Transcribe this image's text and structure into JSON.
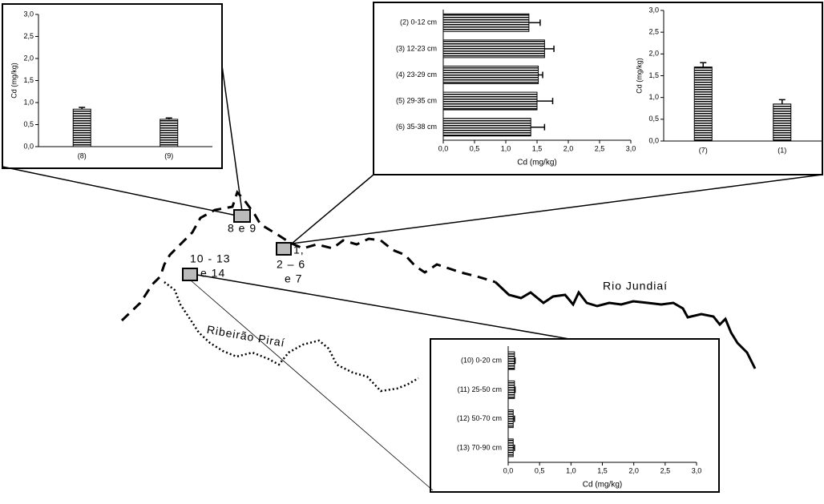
{
  "chart_data": [
    {
      "type": "bar",
      "orientation": "vertical",
      "categories": [
        "(8)",
        "(9)"
      ],
      "values": [
        0.85,
        0.62
      ],
      "errors": [
        0.04,
        0.03
      ],
      "y_label": "Cd (mg/kg)",
      "ylim": [
        0,
        3
      ],
      "yticks": [
        {
          "value": 0,
          "label": "0,0"
        },
        {
          "value": 0.5,
          "label": "0,5"
        },
        {
          "value": 1,
          "label": "1,0"
        },
        {
          "value": 1.5,
          "label": "1,5"
        },
        {
          "value": 2,
          "label": "2,0"
        },
        {
          "value": 2.5,
          "label": "2,5"
        },
        {
          "value": 3,
          "label": "3,0"
        }
      ],
      "color": "#000000"
    },
    {
      "type": "bar",
      "orientation": "horizontal",
      "categories": [
        "(2) 0-12 cm",
        "(3) 12-23 cm",
        "(4) 23-29 cm",
        "(5) 29-35 cm",
        "(6) 35-38 cm"
      ],
      "values": [
        1.37,
        1.62,
        1.52,
        1.5,
        1.4
      ],
      "errors": [
        0.18,
        0.15,
        0.07,
        0.25,
        0.22
      ],
      "x_label": "Cd (mg/kg)",
      "xlim": [
        0,
        3
      ],
      "xticks": [
        {
          "value": 0,
          "label": "0,0"
        },
        {
          "value": 0.5,
          "label": "0,5"
        },
        {
          "value": 1,
          "label": "1,0"
        },
        {
          "value": 1.5,
          "label": "1,5"
        },
        {
          "value": 2,
          "label": "2,0"
        },
        {
          "value": 2.5,
          "label": "2,5"
        },
        {
          "value": 3,
          "label": "3,0"
        }
      ],
      "color": "#000000"
    },
    {
      "type": "bar",
      "orientation": "vertical",
      "categories": [
        "(7)",
        "(1)"
      ],
      "values": [
        1.7,
        0.85
      ],
      "errors": [
        0.1,
        0.1
      ],
      "y_label": "Cd (mg/kg)",
      "ylim": [
        0,
        3
      ],
      "yticks": [
        {
          "value": 0,
          "label": "0,0"
        },
        {
          "value": 0.5,
          "label": "0,5"
        },
        {
          "value": 1,
          "label": "1,0"
        },
        {
          "value": 1.5,
          "label": "1,5"
        },
        {
          "value": 2,
          "label": "2,0"
        },
        {
          "value": 2.5,
          "label": "2,5"
        },
        {
          "value": 3,
          "label": "3,0"
        }
      ],
      "color": "#000000"
    },
    {
      "type": "bar",
      "orientation": "horizontal",
      "categories": [
        "(10) 0-20 cm",
        "(11) 25-50 cm",
        "(12) 50-70 cm",
        "(13) 70-90 cm"
      ],
      "values": [
        0.1,
        0.1,
        0.08,
        0.08
      ],
      "errors": [
        0.01,
        0.01,
        0.02,
        0.02
      ],
      "x_label": "Cd (mg/kg)",
      "xlim": [
        0,
        3
      ],
      "xticks": [
        {
          "value": 0,
          "label": "0,0"
        },
        {
          "value": 0.5,
          "label": "0,5"
        },
        {
          "value": 1,
          "label": "1,0"
        },
        {
          "value": 1.5,
          "label": "1,5"
        },
        {
          "value": 2,
          "label": "2,0"
        },
        {
          "value": 2.5,
          "label": "2,5"
        },
        {
          "value": 3,
          "label": "3,0"
        }
      ],
      "color": "#000000"
    }
  ],
  "map": {
    "labels": [
      "8 e 9",
      "1,",
      "2 – 6",
      "e 7",
      "10 - 13",
      "e 14",
      "Rio Jundiaí",
      "Ribeirão Piraí"
    ]
  }
}
